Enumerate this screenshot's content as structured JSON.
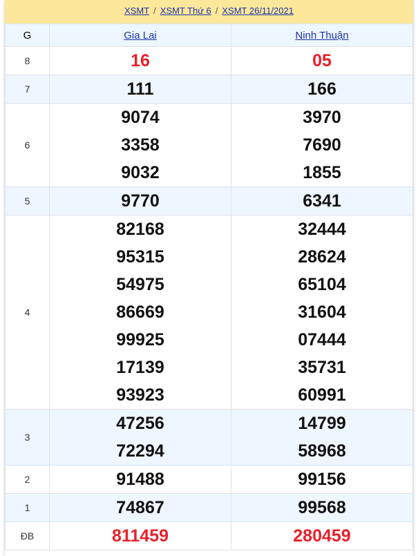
{
  "breadcrumb": [
    "XSMT",
    "XSMT Thứ 6",
    "XSMT 26/11/2021"
  ],
  "header": {
    "g": "G",
    "provinces": [
      "Gia Lai",
      "Ninh Thuận"
    ]
  },
  "colors": {
    "accent_red": "#e8202a",
    "link": "#1a32a8",
    "header_bg": "#fce79a",
    "alt_row": "#eef6ff"
  },
  "rows": [
    {
      "label": "8",
      "red": true,
      "cols": [
        [
          "16"
        ],
        [
          "05"
        ]
      ]
    },
    {
      "label": "7",
      "cols": [
        [
          "111"
        ],
        [
          "166"
        ]
      ]
    },
    {
      "label": "6",
      "cols": [
        [
          "9074",
          "3358",
          "9032"
        ],
        [
          "3970",
          "7690",
          "1855"
        ]
      ]
    },
    {
      "label": "5",
      "cols": [
        [
          "9770"
        ],
        [
          "6341"
        ]
      ]
    },
    {
      "label": "4",
      "cols": [
        [
          "82168",
          "95315",
          "54975",
          "86669",
          "99925",
          "17139",
          "93923"
        ],
        [
          "32444",
          "28624",
          "65104",
          "31604",
          "07444",
          "35731",
          "60991"
        ]
      ]
    },
    {
      "label": "3",
      "cols": [
        [
          "47256",
          "72294"
        ],
        [
          "14799",
          "58968"
        ]
      ]
    },
    {
      "label": "2",
      "cols": [
        [
          "91488"
        ],
        [
          "99156"
        ]
      ]
    },
    {
      "label": "1",
      "cols": [
        [
          "74867"
        ],
        [
          "99568"
        ]
      ]
    },
    {
      "label": "ĐB",
      "red": true,
      "cols": [
        [
          "811459"
        ],
        [
          "280459"
        ]
      ]
    }
  ]
}
